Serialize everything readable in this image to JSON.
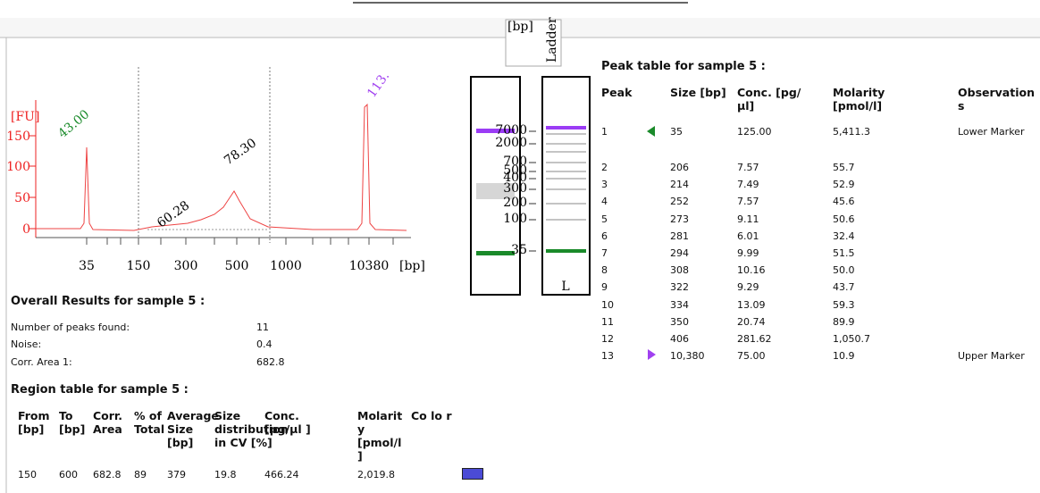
{
  "electropherogram": {
    "y_label": "[FU]",
    "x_unit": "[bp]",
    "yticks": [
      "0",
      "50",
      "100",
      "150"
    ],
    "xticks": [
      "35",
      "150",
      "300",
      "500",
      "1000",
      "10380"
    ],
    "peak_labels": [
      "43.00",
      "60.28",
      "78.30",
      "113."
    ]
  },
  "gel": {
    "unit": "[bp]",
    "ladder_label": "Ladder",
    "ladder_ticks": [
      "7000",
      "2000",
      "700",
      "500",
      "400",
      "300",
      "200",
      "100",
      "35"
    ],
    "lane_label": "L"
  },
  "overall": {
    "title": "Overall Results for sample 5  :",
    "rows": [
      [
        "Number of peaks found:",
        "11"
      ],
      [
        "Noise:",
        "0.4"
      ],
      [
        "Corr. Area 1:",
        "682.8"
      ]
    ]
  },
  "region_table": {
    "title": "Region table for sample 5  :",
    "headers": [
      "From [bp]",
      "To [bp]",
      "Corr. Area",
      "% of Total",
      "Average Size [bp]",
      "Size distribution in CV [%]",
      "Conc. [pg/µl ]",
      "Molarit y [pmol/l ]",
      "Co lo r"
    ],
    "rows": [
      [
        "150",
        "600",
        "682.8",
        "89",
        "379",
        "19.8",
        "466.24",
        "2,019.8"
      ]
    ],
    "color": "#4b4bd6"
  },
  "peak_table": {
    "title": "Peak table for sample 5  :",
    "headers": [
      "Peak",
      "Size [bp]",
      "Conc. [pg/µl]",
      "Molarity [pmol/l]",
      "Observation s"
    ],
    "rows": [
      [
        "1",
        "35",
        "125.00",
        "5,411.3",
        "Lower Marker"
      ],
      [
        "2",
        "206",
        "7.57",
        "55.7"
      ],
      [
        "3",
        "214",
        "7.49",
        "52.9"
      ],
      [
        "4",
        "252",
        "7.57",
        "45.6"
      ],
      [
        "5",
        "273",
        "9.11",
        "50.6"
      ],
      [
        "6",
        "281",
        "6.01",
        "32.4"
      ],
      [
        "7",
        "294",
        "9.99",
        "51.5"
      ],
      [
        "8",
        "308",
        "10.16",
        "50.0"
      ],
      [
        "9",
        "322",
        "9.29",
        "43.7"
      ],
      [
        "10",
        "334",
        "13.09",
        "59.3"
      ],
      [
        "11",
        "350",
        "20.74",
        "89.9"
      ],
      [
        "12",
        "406",
        "281.62",
        "1,050.7"
      ],
      [
        "13",
        "10,380",
        "75.00",
        "10.9",
        "Upper Marker"
      ]
    ]
  }
}
